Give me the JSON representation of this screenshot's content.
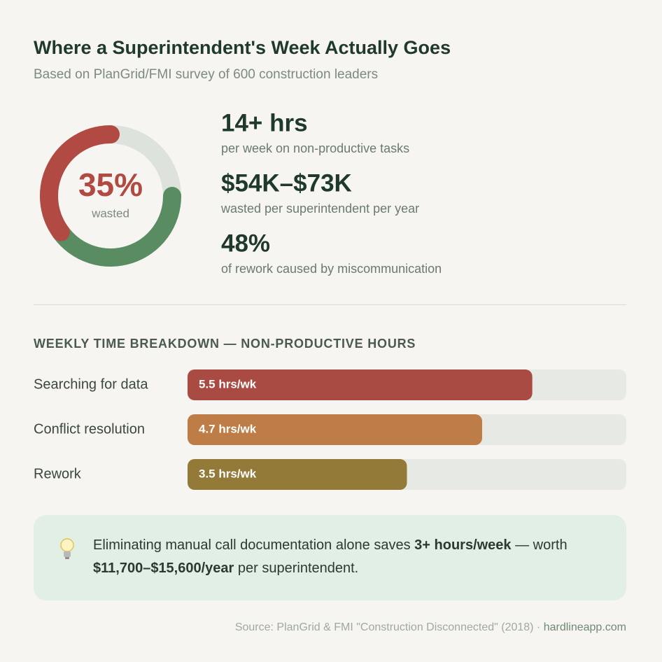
{
  "title": "Where a Superintendent's Week Actually Goes",
  "subtitle": "Based on PlanGrid/FMI survey of 600 construction leaders",
  "chart_data": [
    {
      "type": "donut",
      "values": [
        35,
        40
      ],
      "value_labels": [
        "35%"
      ],
      "label": "wasted",
      "colors": [
        "#b04a42",
        "#5a8c62"
      ],
      "track_color": "#dde2dc"
    },
    {
      "type": "bar",
      "title": "WEEKLY TIME BREAKDOWN — NON-PRODUCTIVE HOURS",
      "categories": [
        "Searching for data",
        "Conflict resolution",
        "Rework"
      ],
      "values": [
        5.5,
        4.7,
        3.5
      ],
      "value_labels": [
        "5.5 hrs/wk",
        "4.7 hrs/wk",
        "3.5 hrs/wk"
      ],
      "colors": [
        "#a94b42",
        "#be7d46",
        "#937a38"
      ],
      "track_color": "#e7e9e4",
      "xlim": [
        0,
        7
      ]
    }
  ],
  "stats": [
    {
      "value": "14+ hrs",
      "label": "per week on non-productive tasks"
    },
    {
      "value": "$54K–$73K",
      "label": "wasted per superintendent per year"
    },
    {
      "value": "48%",
      "label": "of rework caused by miscommunication"
    }
  ],
  "callout": [
    {
      "text": "Eliminating manual call documentation alone saves ",
      "bold": false
    },
    {
      "text": "3+ hours/week",
      "bold": true
    },
    {
      "text": " — worth ",
      "bold": false
    },
    {
      "text": "$11,700–$15,600/year",
      "bold": true
    },
    {
      "text": " per superintendent.",
      "bold": false
    }
  ],
  "source": "Source: PlanGrid & FMI \"Construction Disconnected\" (2018) · ",
  "site": "hardlineapp.com"
}
